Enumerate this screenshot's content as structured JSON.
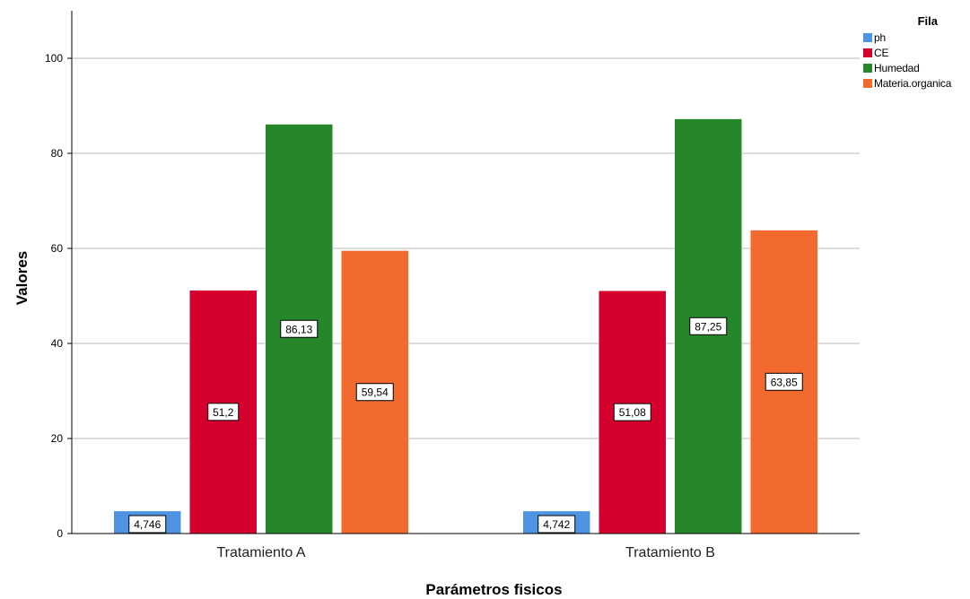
{
  "chart_data": {
    "type": "bar",
    "title": "",
    "xlabel": "Parámetros fisicos",
    "ylabel": "Valores",
    "ylim": [
      0,
      110
    ],
    "yticks": [
      0,
      20,
      40,
      60,
      80,
      100
    ],
    "grid": true,
    "legend_title": "Fila",
    "legend_position": "top-right",
    "categories": [
      "Tratamiento A",
      "Tratamiento B"
    ],
    "series": [
      {
        "name": "ph",
        "color": "#4f94e3",
        "values": [
          4.746,
          4.742
        ],
        "labels": [
          "4,746",
          "4,742"
        ]
      },
      {
        "name": "CE",
        "color": "#d6002f",
        "values": [
          51.2,
          51.08
        ],
        "labels": [
          "51,2",
          "51,08"
        ]
      },
      {
        "name": "Humedad",
        "color": "#26872a",
        "values": [
          86.13,
          87.25
        ],
        "labels": [
          "86,13",
          "87,25"
        ]
      },
      {
        "name": "Materia.organica",
        "color": "#f26a2e",
        "values": [
          59.54,
          63.85
        ],
        "labels": [
          "59,54",
          "63,85"
        ]
      }
    ]
  }
}
